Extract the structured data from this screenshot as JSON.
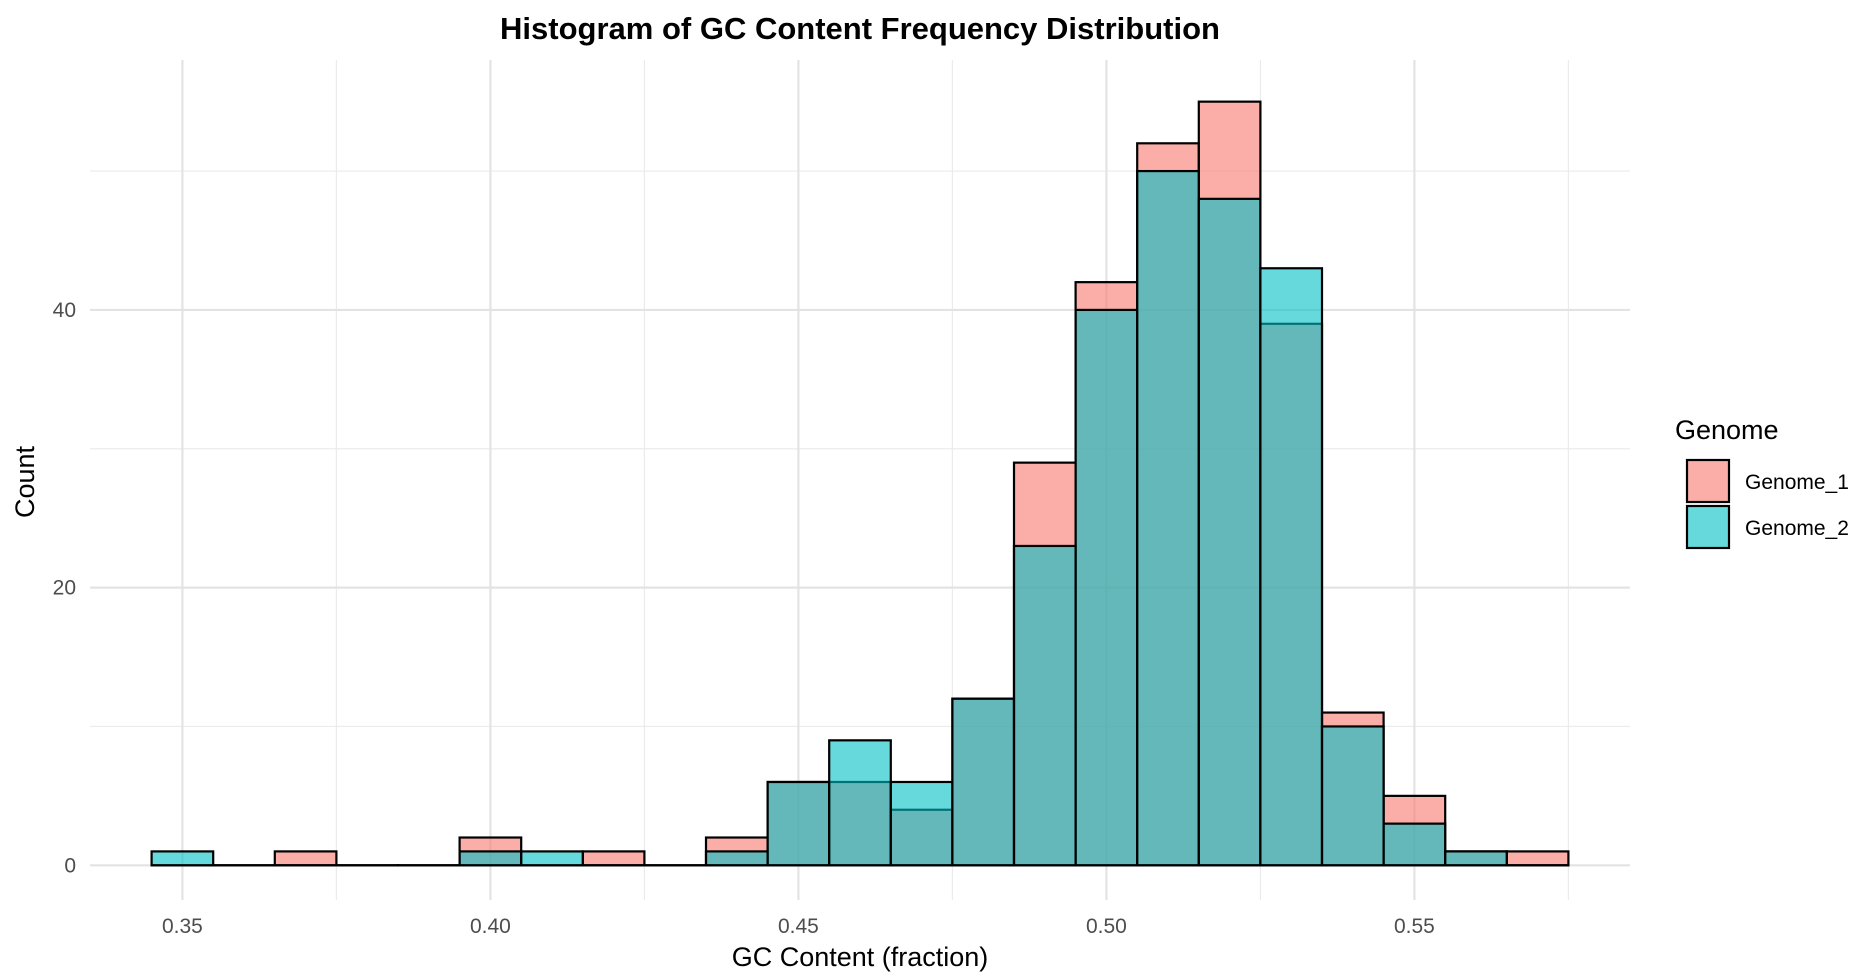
{
  "chart_data": {
    "type": "bar",
    "subtype": "overlapping-histogram",
    "title": "Histogram of GC Content Frequency Distribution",
    "xlabel": "GC Content (fraction)",
    "ylabel": "Count",
    "xlim": [
      0.335,
      0.585
    ],
    "ylim": [
      -2.5,
      58
    ],
    "x_ticks": [
      0.35,
      0.4,
      0.45,
      0.5,
      0.55
    ],
    "x_tick_labels": [
      "0.35",
      "0.40",
      "0.45",
      "0.50",
      "0.55"
    ],
    "y_ticks": [
      0,
      20,
      40
    ],
    "y_tick_labels": [
      "0",
      "20",
      "40"
    ],
    "bin_width": 0.01,
    "bin_centers": [
      0.35,
      0.36,
      0.37,
      0.38,
      0.39,
      0.4,
      0.41,
      0.42,
      0.43,
      0.44,
      0.45,
      0.46,
      0.47,
      0.48,
      0.49,
      0.5,
      0.51,
      0.52,
      0.53,
      0.54,
      0.55,
      0.56,
      0.57
    ],
    "series": [
      {
        "name": "Genome_1",
        "color": "#F8766D",
        "values": [
          0,
          0,
          1,
          0,
          0,
          2,
          0,
          1,
          0,
          2,
          6,
          6,
          4,
          12,
          29,
          42,
          52,
          55,
          39,
          11,
          5,
          1,
          1
        ]
      },
      {
        "name": "Genome_2",
        "color": "#00BFC4",
        "values": [
          1,
          0,
          0,
          0,
          0,
          1,
          1,
          0,
          0,
          1,
          6,
          9,
          6,
          12,
          23,
          40,
          50,
          48,
          43,
          10,
          3,
          1,
          0
        ]
      }
    ],
    "legend": {
      "title": "Genome",
      "position": "right"
    },
    "grid": true,
    "fill_opacity": 0.6
  }
}
